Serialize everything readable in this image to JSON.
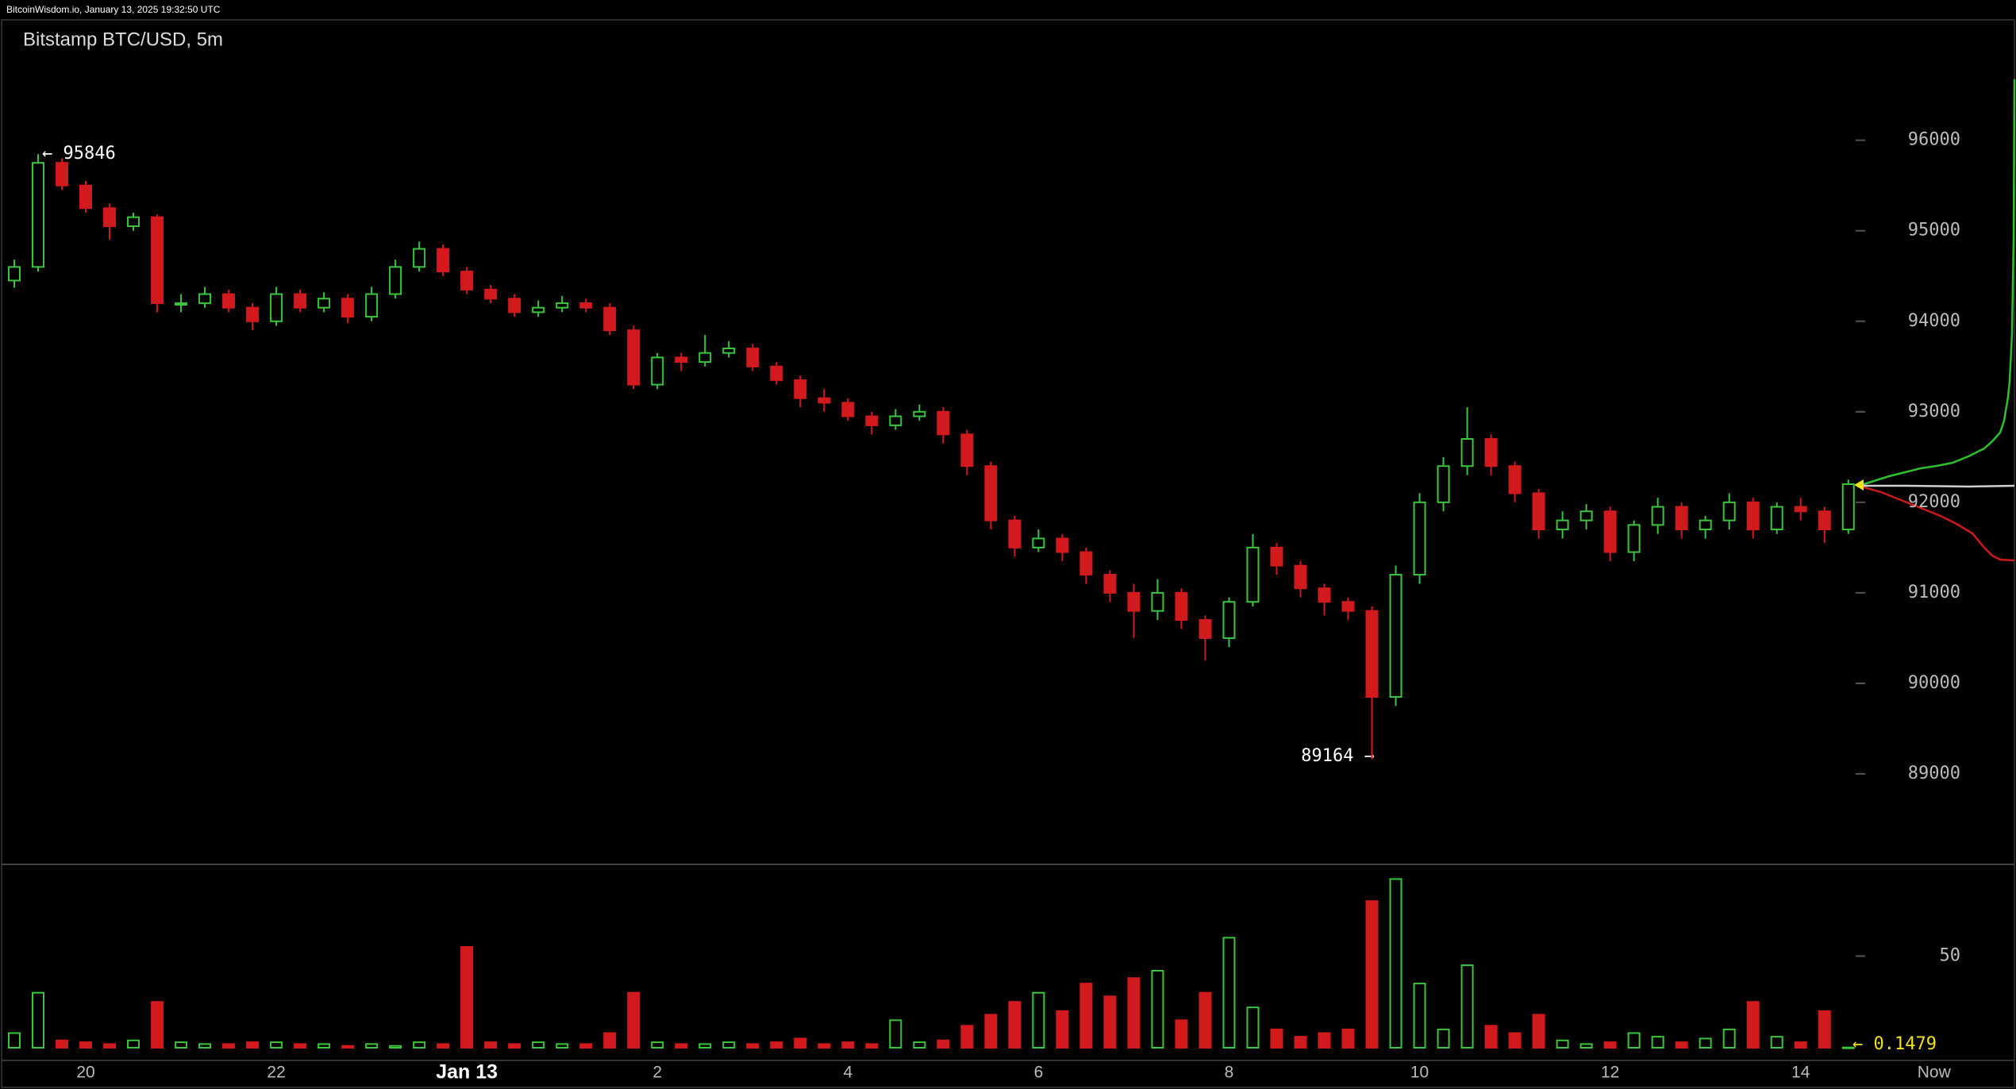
{
  "chart_data": {
    "type": "candlestick",
    "source": "BitcoinWisdom.io, January 13, 2025 19:32:50 UTC",
    "title": "Bitstamp BTC/USD, 5m",
    "annotations": [
      "← 95846",
      "89164 →",
      "← 0.1479"
    ],
    "up_color": "#3cc43c",
    "down_color": "#d11a1d",
    "xlim": [
      19.1,
      40.26
    ],
    "xticks": [
      20,
      22,
      {
        "value": 24,
        "label": "Jan 13"
      },
      {
        "value": 26,
        "label": "2"
      },
      {
        "value": 28,
        "label": "4"
      },
      {
        "value": 30,
        "label": "6"
      },
      {
        "value": 32,
        "label": "8"
      },
      {
        "value": 34,
        "label": "10"
      },
      {
        "value": 36,
        "label": "12"
      },
      {
        "value": 38,
        "label": "14"
      },
      {
        "value": 39.4,
        "label": "Now"
      }
    ],
    "ylim": [
      88000,
      97330
    ],
    "yticks": [
      89000,
      90000,
      91000,
      92000,
      93000,
      94000,
      95000,
      96000
    ],
    "vlim": [
      0,
      100
    ],
    "vticks": [
      50
    ],
    "x": [
      19.25,
      19.5,
      19.75,
      20,
      20.25,
      20.5,
      20.75,
      21,
      21.25,
      21.5,
      21.75,
      22,
      22.25,
      22.5,
      22.75,
      23,
      23.25,
      23.5,
      23.75,
      24,
      24.25,
      24.5,
      24.75,
      25,
      25.25,
      25.5,
      25.75,
      26,
      26.25,
      26.5,
      26.75,
      27,
      27.25,
      27.5,
      27.75,
      28,
      28.25,
      28.5,
      28.75,
      29,
      29.25,
      29.5,
      29.75,
      30,
      30.25,
      30.5,
      30.75,
      31,
      31.25,
      31.5,
      31.75,
      32,
      32.25,
      32.5,
      32.75,
      33,
      33.25,
      33.5,
      33.75,
      34,
      34.25,
      34.5,
      34.75,
      35,
      35.25,
      35.5,
      35.75,
      36,
      36.25,
      36.5,
      36.75,
      37,
      37.25,
      37.5,
      37.75,
      38,
      38.25,
      38.5
    ],
    "open": [
      94450,
      94600,
      95750,
      95500,
      95250,
      95050,
      95150,
      94200,
      94200,
      94300,
      94150,
      94000,
      94300,
      94150,
      94250,
      94050,
      94300,
      94600,
      94800,
      94550,
      94350,
      94250,
      94100,
      94150,
      94200,
      94150,
      93900,
      93300,
      93600,
      93550,
      93650,
      93700,
      93500,
      93350,
      93150,
      93100,
      92950,
      92850,
      92950,
      93000,
      92750,
      92400,
      91800,
      91500,
      91600,
      91450,
      91200,
      91000,
      90800,
      91000,
      90700,
      90500,
      90900,
      91500,
      91300,
      91050,
      90900,
      90800,
      89850,
      91200,
      92000,
      92400,
      92700,
      92400,
      92100,
      91700,
      91800,
      91900,
      91450,
      91750,
      91950,
      91700,
      91800,
      92000,
      91700,
      91950,
      91900,
      91700
    ],
    "high": [
      94680,
      95846,
      95800,
      95550,
      95300,
      95200,
      95180,
      94300,
      94380,
      94350,
      94200,
      94380,
      94350,
      94320,
      94300,
      94380,
      94680,
      94880,
      94850,
      94600,
      94400,
      94300,
      94230,
      94280,
      94250,
      94200,
      93950,
      93650,
      93650,
      93850,
      93780,
      93750,
      93550,
      93400,
      93250,
      93150,
      93000,
      93030,
      93080,
      93050,
      92800,
      92450,
      91850,
      91700,
      91650,
      91500,
      91250,
      91100,
      91150,
      91050,
      90750,
      90950,
      91650,
      91550,
      91350,
      91100,
      90950,
      90850,
      91300,
      92100,
      92500,
      93050,
      92750,
      92450,
      92150,
      91900,
      91980,
      91950,
      91800,
      92050,
      92000,
      91850,
      92100,
      92050,
      92000,
      92050,
      91950,
      92250
    ],
    "low": [
      94370,
      94550,
      95450,
      95200,
      94900,
      95000,
      94100,
      94100,
      94150,
      94100,
      93900,
      93950,
      94100,
      94100,
      93980,
      94000,
      94250,
      94550,
      94500,
      94300,
      94200,
      94050,
      94050,
      94100,
      94100,
      93850,
      93250,
      93250,
      93450,
      93500,
      93600,
      93450,
      93300,
      93050,
      93000,
      92900,
      92750,
      92800,
      92900,
      92650,
      92300,
      91700,
      91400,
      91450,
      91350,
      91100,
      90900,
      90500,
      90700,
      90600,
      90250,
      90400,
      90850,
      91200,
      90950,
      90750,
      90700,
      89164,
      89750,
      91100,
      91900,
      92300,
      92300,
      92000,
      91600,
      91600,
      91700,
      91350,
      91350,
      91650,
      91600,
      91600,
      91700,
      91600,
      91650,
      91800,
      91550,
      91650
    ],
    "close": [
      94600,
      95750,
      95500,
      95250,
      95050,
      95150,
      94200,
      94200,
      94300,
      94150,
      94000,
      94300,
      94150,
      94250,
      94050,
      94300,
      94600,
      94800,
      94550,
      94350,
      94250,
      94100,
      94150,
      94200,
      94150,
      93900,
      93300,
      93600,
      93550,
      93650,
      93700,
      93500,
      93350,
      93150,
      93100,
      92950,
      92850,
      92950,
      93000,
      92750,
      92400,
      91800,
      91500,
      91600,
      91450,
      91200,
      91000,
      90800,
      91000,
      90700,
      90500,
      90900,
      91500,
      91300,
      91050,
      90900,
      90800,
      89850,
      91200,
      92000,
      92400,
      92700,
      92400,
      92100,
      91700,
      91800,
      91900,
      91450,
      91750,
      91950,
      91700,
      91800,
      92000,
      91700,
      91950,
      91900,
      91700,
      92200
    ],
    "volume": [
      8,
      30,
      4,
      3,
      2,
      4,
      25,
      3,
      2,
      2,
      3,
      3,
      2,
      2,
      1,
      2,
      1,
      3,
      2,
      55,
      3,
      2,
      3,
      2,
      2,
      8,
      30,
      3,
      2,
      2,
      3,
      2,
      3,
      5,
      2,
      3,
      2,
      15,
      3,
      4,
      12,
      18,
      25,
      30,
      20,
      35,
      28,
      38,
      42,
      15,
      30,
      60,
      22,
      10,
      6,
      8,
      10,
      80,
      92,
      35,
      10,
      45,
      12,
      8,
      18,
      4,
      2,
      3,
      8,
      6,
      3,
      5,
      10,
      25,
      6,
      3,
      20,
      0.1479
    ]
  }
}
